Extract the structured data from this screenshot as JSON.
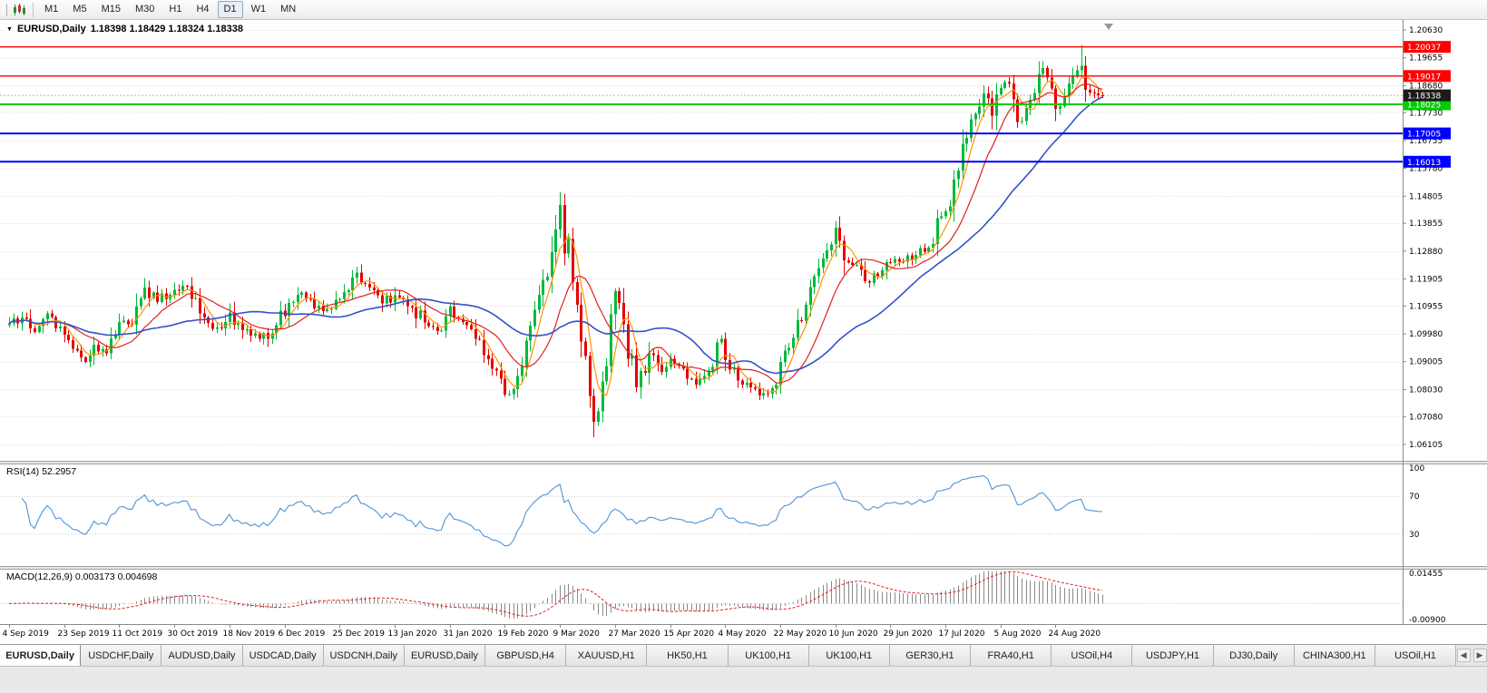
{
  "toolbar": {
    "timeframes": [
      "M1",
      "M5",
      "M15",
      "M30",
      "H1",
      "H4",
      "D1",
      "W1",
      "MN"
    ],
    "active": "D1"
  },
  "chart": {
    "title": "EURUSD,Daily",
    "ohlc": "1.18398 1.18429 1.18324 1.18338"
  },
  "price_axis": {
    "ticks": [
      "1.20630",
      "1.19655",
      "1.18680",
      "1.17730",
      "1.16755",
      "1.15780",
      "1.14805",
      "1.13855",
      "1.12880",
      "1.11905",
      "1.10955",
      "1.09980",
      "1.09005",
      "1.08030",
      "1.07080",
      "1.06105"
    ]
  },
  "date_axis": {
    "ticks": [
      "4 Sep 2019",
      "23 Sep 2019",
      "11 Oct 2019",
      "30 Oct 2019",
      "18 Nov 2019",
      "6 Dec 2019",
      "25 Dec 2019",
      "13 Jan 2020",
      "31 Jan 2020",
      "19 Feb 2020",
      "9 Mar 2020",
      "27 Mar 2020",
      "15 Apr 2020",
      "4 May 2020",
      "22 May 2020",
      "10 Jun 2020",
      "29 Jun 2020",
      "17 Jul 2020",
      "5 Aug 2020",
      "24 Aug 2020"
    ]
  },
  "levels": [
    {
      "name": "resistance-1",
      "price": 1.20037,
      "label": "1.20037",
      "color": "#ff0000",
      "width": 1.4
    },
    {
      "name": "resistance-2",
      "price": 1.19017,
      "label": "1.19017",
      "color": "#ff0000",
      "width": 1.4
    },
    {
      "name": "support-green",
      "price": 1.18025,
      "label": "1.18025",
      "color": "#00cc00",
      "width": 2
    },
    {
      "name": "support-blue-1",
      "price": 1.17005,
      "label": "1.17005",
      "color": "#0000ff",
      "width": 2
    },
    {
      "name": "support-blue-2",
      "price": 1.16013,
      "label": "1.16013",
      "color": "#0000ff",
      "width": 2
    }
  ],
  "current_price": {
    "value": "1.18338",
    "box_color": "#1b1b1b"
  },
  "rsi": {
    "label": "RSI(14) 52.2957",
    "period": 14,
    "value": 52.2957,
    "axis_labels": [
      "100",
      "70",
      "30"
    ],
    "levels": [
      70,
      30
    ],
    "line_color": "#4f93d8"
  },
  "macd": {
    "label": "MACD(12,26,9) 0.003173 0.004698",
    "fast": 12,
    "slow": 26,
    "signal": 9,
    "values": [
      0.003173,
      0.004698
    ],
    "axis_top": "0.01455",
    "axis_bottom": "-0.00900",
    "hist_color": "#8a8a8a",
    "signal_color": "#e02020"
  },
  "tabs": {
    "active_index": 0,
    "items": [
      "EURUSD,Daily",
      "USDCHF,Daily",
      "AUDUSD,Daily",
      "USDCAD,Daily",
      "USDCNH,Daily",
      "EURUSD,Daily",
      "GBPUSD,H4",
      "XAUUSD,H1",
      "HK50,H1",
      "UK100,H1",
      "UK100,H1",
      "GER30,H1",
      "FRA40,H1",
      "USOil,H4",
      "USDJPY,H1",
      "DJ30,Daily",
      "CHINA300,H1",
      "USOil,H1"
    ]
  },
  "chart_data": {
    "type": "candlestick",
    "symbol": "EURUSD",
    "timeframe": "Daily",
    "bars": 259,
    "ylim": [
      1.0569,
      1.2079
    ],
    "up_color": "#00b93b",
    "down_color": "#e60000",
    "close_anchors": [
      [
        0,
        1.1035
      ],
      [
        4,
        1.105
      ],
      [
        6,
        1.1005
      ],
      [
        9,
        1.107
      ],
      [
        13,
        1.0995
      ],
      [
        16,
        1.094
      ],
      [
        18,
        1.0899
      ],
      [
        20,
        1.096
      ],
      [
        23,
        1.093
      ],
      [
        26,
        1.104
      ],
      [
        29,
        1.103
      ],
      [
        32,
        1.116
      ],
      [
        35,
        1.111
      ],
      [
        39,
        1.1152
      ],
      [
        42,
        1.1165
      ],
      [
        45,
        1.107
      ],
      [
        49,
        1.102
      ],
      [
        52,
        1.1073
      ],
      [
        55,
        1.101
      ],
      [
        58,
        1.1
      ],
      [
        61,
        1.098
      ],
      [
        64,
        1.108
      ],
      [
        65,
        1.106
      ],
      [
        68,
        1.1135
      ],
      [
        71,
        1.112
      ],
      [
        74,
        1.1078
      ],
      [
        78,
        1.112
      ],
      [
        82,
        1.1212
      ],
      [
        85,
        1.116
      ],
      [
        88,
        1.1105
      ],
      [
        91,
        1.1134
      ],
      [
        95,
        1.109
      ],
      [
        99,
        1.1025
      ],
      [
        102,
        1.101
      ],
      [
        104,
        1.1093
      ],
      [
        107,
        1.104
      ],
      [
        110,
        1.098
      ],
      [
        113,
        1.091
      ],
      [
        115,
        1.087
      ],
      [
        117,
        1.0785
      ],
      [
        119,
        1.0805
      ],
      [
        121,
        1.0885
      ],
      [
        123,
        1.1026
      ],
      [
        125,
        1.1135
      ],
      [
        128,
        1.1285
      ],
      [
        130,
        1.145
      ],
      [
        131,
        1.128
      ],
      [
        132,
        1.133
      ],
      [
        133,
        1.118
      ],
      [
        134,
        1.11
      ],
      [
        136,
        1.092
      ],
      [
        138,
        1.069
      ],
      [
        139,
        1.0727
      ],
      [
        141,
        1.0885
      ],
      [
        143,
        1.1147
      ],
      [
        145,
        1.1031
      ],
      [
        148,
        1.081
      ],
      [
        151,
        1.093
      ],
      [
        154,
        1.0865
      ],
      [
        156,
        1.091
      ],
      [
        159,
        1.0875
      ],
      [
        162,
        1.082
      ],
      [
        165,
        1.087
      ],
      [
        168,
        1.098
      ],
      [
        169,
        1.0906
      ],
      [
        172,
        1.0834
      ],
      [
        175,
        1.081
      ],
      [
        178,
        1.079
      ],
      [
        181,
        1.082
      ],
      [
        182,
        1.09
      ],
      [
        185,
        1.0984
      ],
      [
        188,
        1.11
      ],
      [
        190,
        1.12
      ],
      [
        193,
        1.129
      ],
      [
        195,
        1.137
      ],
      [
        197,
        1.1255
      ],
      [
        200,
        1.124
      ],
      [
        203,
        1.1177
      ],
      [
        206,
        1.122
      ],
      [
        208,
        1.1247
      ],
      [
        211,
        1.125
      ],
      [
        214,
        1.1274
      ],
      [
        217,
        1.13
      ],
      [
        220,
        1.141
      ],
      [
        221,
        1.1427
      ],
      [
        224,
        1.157
      ],
      [
        227,
        1.175
      ],
      [
        230,
        1.184
      ],
      [
        232,
        1.1762
      ],
      [
        234,
        1.186
      ],
      [
        236,
        1.1876
      ],
      [
        238,
        1.174
      ],
      [
        240,
        1.179
      ],
      [
        242,
        1.1842
      ],
      [
        244,
        1.193
      ],
      [
        246,
        1.1858
      ],
      [
        247,
        1.1787
      ],
      [
        249,
        1.183
      ],
      [
        251,
        1.1903
      ],
      [
        253,
        1.1937
      ],
      [
        254,
        1.1854
      ],
      [
        256,
        1.184
      ],
      [
        258,
        1.1834
      ]
    ],
    "wick_overrides": {
      "117": {
        "low": 1.0778
      },
      "130": {
        "high": 1.1495
      },
      "138": {
        "low": 1.0636
      },
      "253": {
        "high": 1.2011
      }
    },
    "moving_averages": [
      {
        "period": 5,
        "color": "#ff9500"
      },
      {
        "period": 13,
        "color": "#e02020"
      },
      {
        "period": 34,
        "color": "#3352c8"
      }
    ]
  }
}
